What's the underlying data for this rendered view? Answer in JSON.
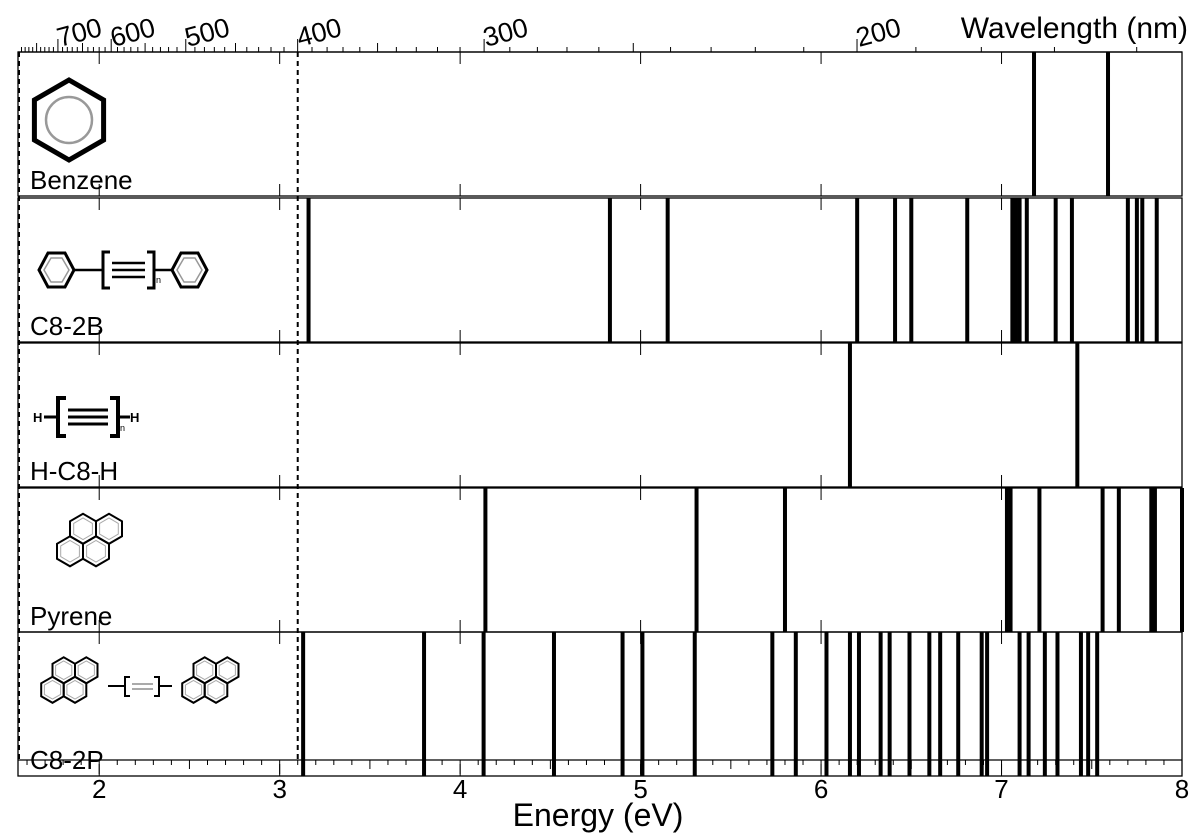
{
  "chart_data": {
    "type": "spectrum",
    "title": "",
    "xlabel": "Energy (eV)",
    "top_axis_label": "Wavelength (nm)",
    "xlim": [
      1.55,
      8.0
    ],
    "x_ticks": [
      "2",
      "3",
      "4",
      "5",
      "6",
      "7",
      "8"
    ],
    "wavelength_ticks": [
      "700",
      "600",
      "500",
      "400",
      "300",
      "200"
    ],
    "reference_lines_ev": [
      1.55,
      3.1
    ],
    "panels": [
      {
        "name": "Benzene",
        "molecule_icon": "benzene-structure-icon",
        "values": [
          7.18,
          7.59
        ]
      },
      {
        "name": "C8-2B",
        "molecule_icon": "diphenyl-polyyne-structure-icon",
        "subscript": "n",
        "values": [
          3.16,
          4.83,
          5.15,
          6.2,
          6.41,
          6.5,
          6.81,
          7.06,
          7.08,
          7.1,
          7.14,
          7.3,
          7.39,
          7.7,
          7.75,
          7.78,
          7.86
        ]
      },
      {
        "name": "H-C8-H",
        "molecule_icon": "polyyne-structure-icon",
        "subscript": "n",
        "values": [
          6.16,
          7.42
        ]
      },
      {
        "name": "Pyrene",
        "molecule_icon": "pyrene-structure-icon",
        "values": [
          4.14,
          5.31,
          5.8,
          7.03,
          7.05,
          7.21,
          7.56,
          7.65,
          7.83,
          7.85,
          8.0
        ]
      },
      {
        "name": "C8-2P",
        "molecule_icon": "dipyrenyl-polyyne-structure-icon",
        "values": [
          3.13,
          3.8,
          4.13,
          4.52,
          4.9,
          5.01,
          5.3,
          5.73,
          5.86,
          6.03,
          6.16,
          6.21,
          6.33,
          6.38,
          6.49,
          6.6,
          6.66,
          6.76,
          6.89,
          6.92,
          7.1,
          7.15,
          7.24,
          7.31,
          7.44,
          7.48,
          7.53
        ]
      }
    ]
  }
}
